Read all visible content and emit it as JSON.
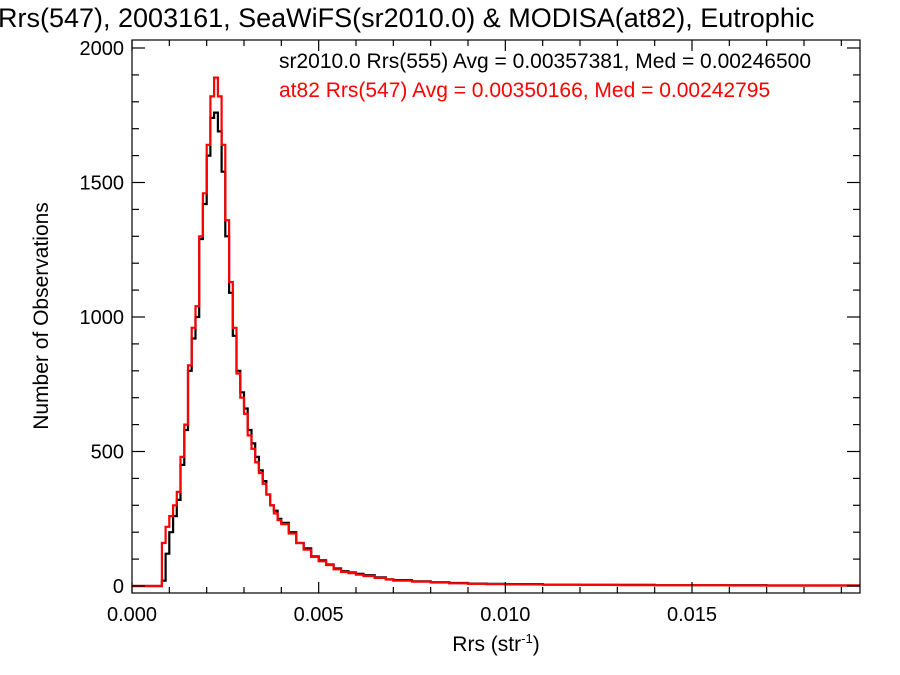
{
  "chart_data": {
    "type": "line",
    "title": "Rrs(547), 2003161, SeaWiFS(sr2010.0) & MODISA(at82), Eutrophic",
    "xlabel_main": "Rrs (str",
    "xlabel_sup": "-1",
    "xlabel_close": ")",
    "ylabel": "Number of Observations",
    "xlim": [
      0.0,
      0.0195
    ],
    "ylim": [
      0,
      2000
    ],
    "x_ticks": [
      {
        "value": 0.0,
        "label": "0.000"
      },
      {
        "value": 0.005,
        "label": "0.005"
      },
      {
        "value": 0.01,
        "label": "0.010"
      },
      {
        "value": 0.015,
        "label": "0.015"
      }
    ],
    "y_ticks": [
      {
        "value": 0,
        "label": "0"
      },
      {
        "value": 500,
        "label": "500"
      },
      {
        "value": 1000,
        "label": "1000"
      },
      {
        "value": 1500,
        "label": "1500"
      },
      {
        "value": 2000,
        "label": "2000"
      }
    ],
    "legend": [
      {
        "text": "sr2010.0 Rrs(555) Avg = 0.00357381, Med = 0.00246500",
        "color": "#000000"
      },
      {
        "text": "at82 Rrs(547) Avg = 0.00350166, Med = 0.00242795",
        "color": "#ff0000"
      }
    ],
    "series": [
      {
        "color": "#000000",
        "x": [
          0.0,
          0.0008,
          0.0009,
          0.001,
          0.0011,
          0.0012,
          0.0013,
          0.0014,
          0.0015,
          0.0016,
          0.0017,
          0.0018,
          0.0019,
          0.002,
          0.0021,
          0.0022,
          0.0023,
          0.0024,
          0.0025,
          0.0026,
          0.0027,
          0.0028,
          0.0029,
          0.003,
          0.0031,
          0.0032,
          0.0033,
          0.0034,
          0.0035,
          0.0036,
          0.0037,
          0.0038,
          0.0039,
          0.004,
          0.0042,
          0.0044,
          0.0046,
          0.0048,
          0.005,
          0.0052,
          0.0054,
          0.0056,
          0.0058,
          0.006,
          0.0062,
          0.0065,
          0.0068,
          0.007,
          0.0075,
          0.008,
          0.0085,
          0.009,
          0.0095,
          0.01,
          0.011,
          0.012,
          0.013,
          0.014,
          0.015,
          0.016,
          0.017,
          0.018,
          0.0195
        ],
        "y": [
          0,
          20,
          120,
          200,
          260,
          320,
          450,
          580,
          800,
          920,
          1000,
          1290,
          1420,
          1600,
          1740,
          1760,
          1690,
          1540,
          1300,
          1090,
          930,
          800,
          720,
          660,
          580,
          530,
          480,
          430,
          390,
          340,
          300,
          280,
          250,
          235,
          200,
          160,
          140,
          110,
          95,
          80,
          65,
          55,
          50,
          45,
          40,
          32,
          25,
          22,
          17,
          14,
          11,
          9,
          8,
          7,
          5,
          4,
          4,
          3,
          3,
          3,
          2,
          2,
          2
        ]
      },
      {
        "color": "#ff0000",
        "x": [
          0.0,
          0.0008,
          0.0009,
          0.001,
          0.0011,
          0.0012,
          0.0013,
          0.0014,
          0.0015,
          0.0016,
          0.0017,
          0.0018,
          0.0019,
          0.002,
          0.0021,
          0.0022,
          0.0023,
          0.0024,
          0.0025,
          0.0026,
          0.0027,
          0.0028,
          0.0029,
          0.003,
          0.0031,
          0.0032,
          0.0033,
          0.0034,
          0.0035,
          0.0036,
          0.0037,
          0.0038,
          0.0039,
          0.004,
          0.0042,
          0.0044,
          0.0046,
          0.0048,
          0.005,
          0.0052,
          0.0054,
          0.0056,
          0.0058,
          0.006,
          0.0062,
          0.0065,
          0.0068,
          0.007,
          0.0075,
          0.008,
          0.0085,
          0.009,
          0.0095,
          0.01,
          0.011,
          0.012,
          0.013,
          0.014,
          0.015,
          0.016,
          0.017,
          0.018,
          0.0195
        ],
        "y": [
          0,
          160,
          220,
          260,
          300,
          350,
          480,
          600,
          820,
          960,
          1040,
          1300,
          1460,
          1640,
          1820,
          1890,
          1820,
          1640,
          1360,
          1130,
          960,
          790,
          700,
          640,
          560,
          510,
          460,
          420,
          380,
          340,
          300,
          270,
          245,
          230,
          195,
          160,
          135,
          108,
          92,
          78,
          62,
          52,
          48,
          42,
          37,
          30,
          24,
          20,
          16,
          13,
          10,
          8,
          7,
          6,
          5,
          4,
          3,
          3,
          3,
          2,
          2,
          2,
          2
        ]
      }
    ]
  }
}
